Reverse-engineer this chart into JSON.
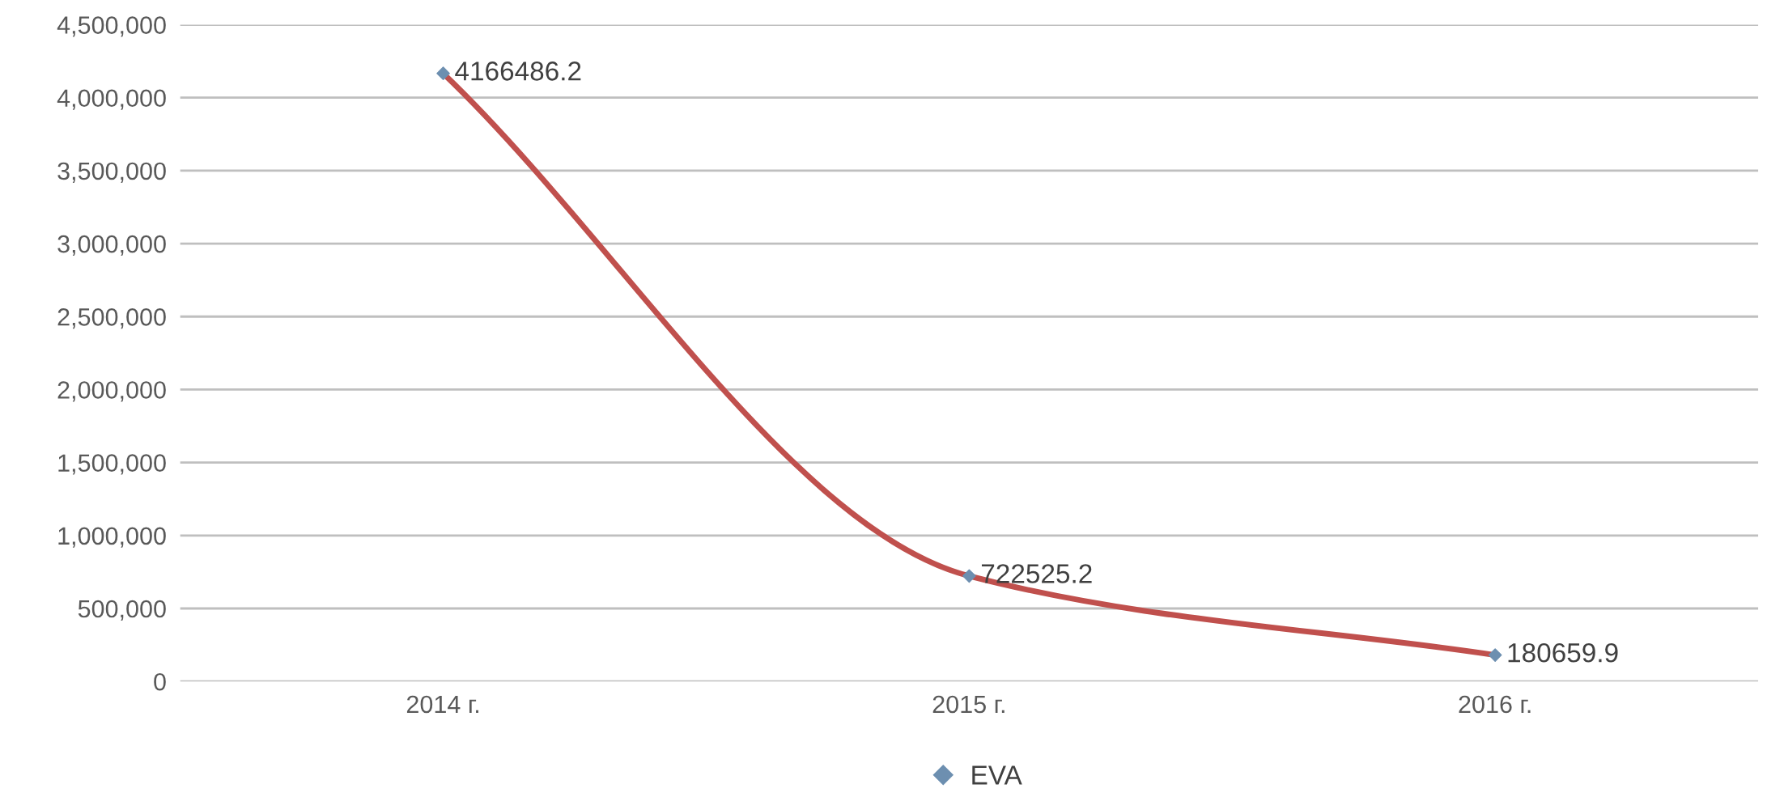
{
  "chart_data": {
    "type": "line",
    "categories": [
      "2014 г.",
      "2015 г.",
      "2016 г."
    ],
    "series": [
      {
        "name": "EVA",
        "color": "#c0504d",
        "colors": [
          "#6d8fb0",
          "#6d8fb0",
          "#6d8fb0"
        ],
        "values": [
          4166486.2,
          722525.2,
          180659.9
        ]
      }
    ],
    "ylim": [
      0,
      4500000
    ],
    "yticks": [
      {
        "value": 0,
        "label": "0"
      },
      {
        "value": 500000,
        "label": "500,000"
      },
      {
        "value": 1000000,
        "label": "1,000,000"
      },
      {
        "value": 1500000,
        "label": "1,500,000"
      },
      {
        "value": 2000000,
        "label": "2,000,000"
      },
      {
        "value": 2500000,
        "label": "2,500,000"
      },
      {
        "value": 3000000,
        "label": "3,000,000"
      },
      {
        "value": 3500000,
        "label": "3,500,000"
      },
      {
        "value": 4000000,
        "label": "4,000,000"
      },
      {
        "value": 4500000,
        "label": "4,500,000"
      }
    ],
    "grid": "y",
    "legend": "bottom",
    "marker": "diamond",
    "line_style": "solid",
    "data_labels": true
  }
}
